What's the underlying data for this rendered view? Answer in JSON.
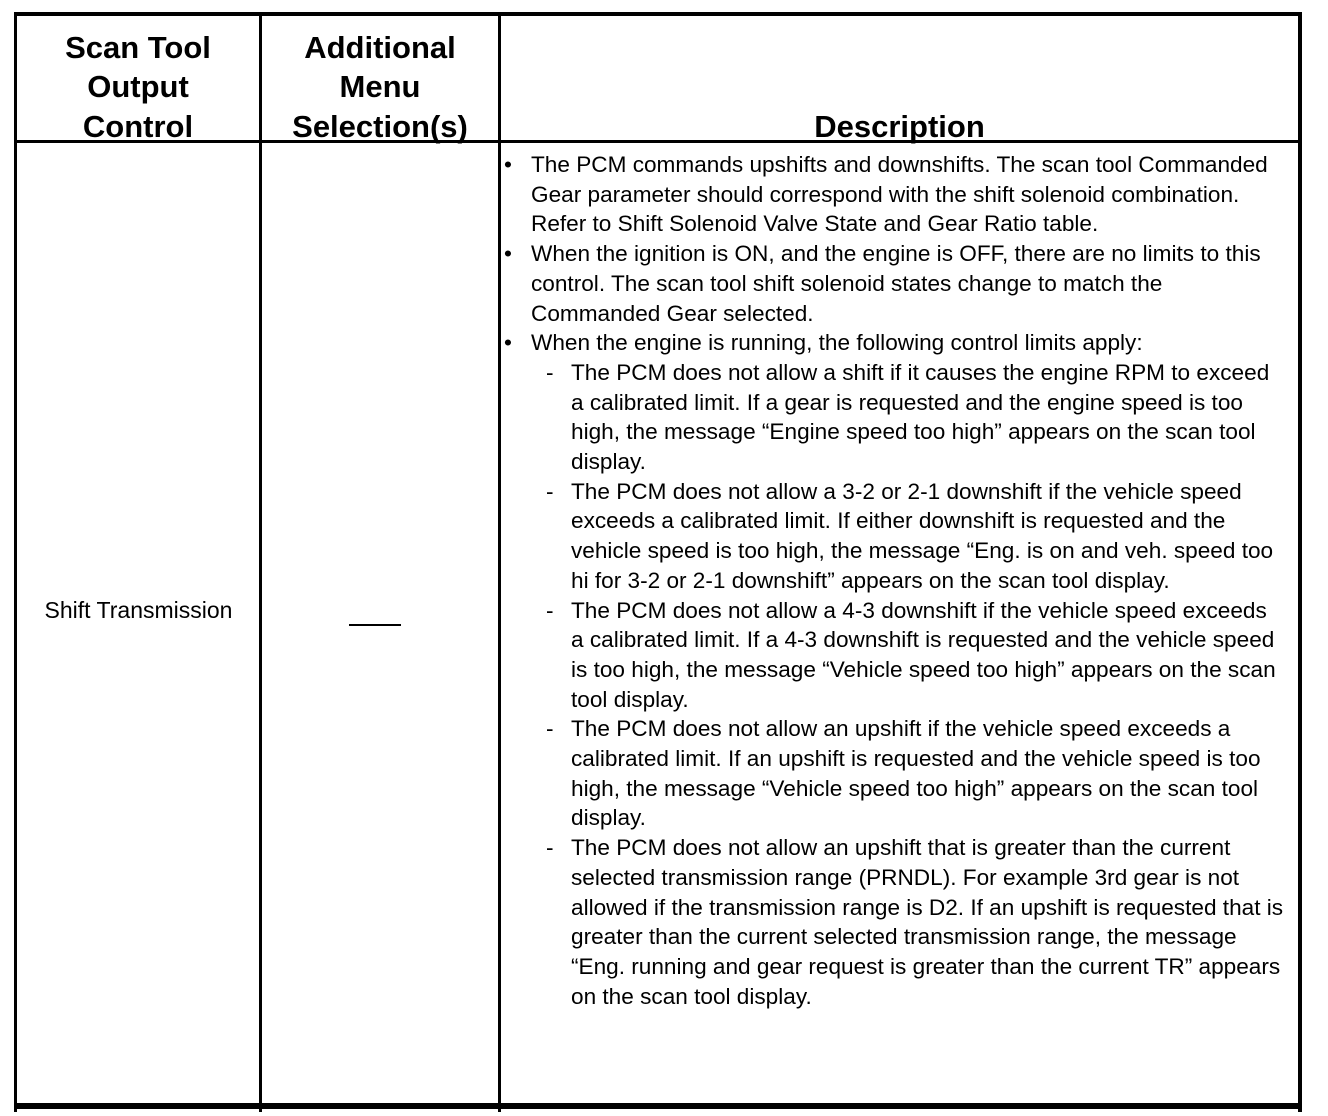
{
  "table": {
    "headers": [
      "Scan Tool Output Control",
      "Additional Menu Selection(s)",
      "Description"
    ],
    "header_lines": {
      "col1": [
        "Scan Tool",
        "Output",
        "Control"
      ],
      "col2": [
        "Additional",
        "Menu",
        "Selection(s)"
      ],
      "col3": [
        "Description"
      ]
    },
    "row": {
      "control": "Shift Transmission",
      "menu_selection": "—",
      "bullets": [
        "The PCM commands upshifts and downshifts. The scan tool Commanded Gear parameter should correspond with the shift solenoid combination. Refer to Shift Solenoid Valve State and Gear Ratio table.",
        "When the ignition is ON, and the engine is OFF, there are no limits to this control. The scan tool shift solenoid states change to match the Commanded Gear selected.",
        "When the engine is running, the following control limits apply:"
      ],
      "sub_items": [
        "The PCM does not allow a shift if it causes the engine RPM to exceed a calibrated limit. If a gear is requested and the engine speed is too high, the message “Engine speed too high” appears on the scan tool display.",
        "The PCM does not allow a 3-2 or 2-1 downshift if the vehicle speed exceeds a calibrated limit. If either downshift is requested and the vehicle speed is too high, the message “Eng. is on and veh. speed too hi for 3-2 or 2-1 downshift” appears on the scan tool display.",
        "The PCM does not allow a 4-3 downshift if the vehicle speed exceeds a calibrated limit. If a 4-3 downshift is requested and the vehicle speed is too high, the message “Vehicle speed too high” appears on the scan tool display.",
        "The PCM does not allow an upshift if the vehicle speed exceeds a calibrated limit. If an upshift is requested and the vehicle speed is too high, the message “Vehicle speed too high” appears on the scan tool display.",
        "The PCM does not allow an upshift that is greater than the current selected transmission range (PRNDL). For example 3rd gear is not allowed if the transmission range is D2. If an upshift is requested that is greater than the current selected transmission range, the message “Eng. running and gear request is greater than the current TR” appears on the scan tool display."
      ]
    }
  }
}
